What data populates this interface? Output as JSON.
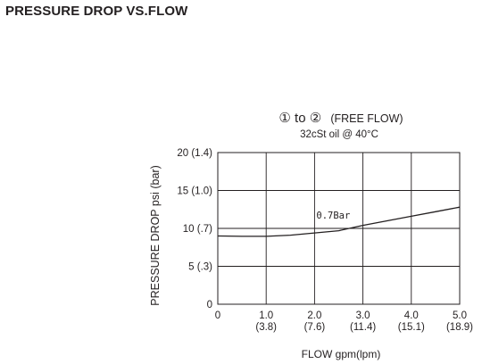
{
  "page_title": "PRESSURE DROP VS.FLOW",
  "chart_data": {
    "type": "line",
    "title_prefix": "① to ②",
    "title_suffix": "(FREE FLOW)",
    "subtitle": "32cSt oil @ 40°C",
    "xlabel": "FLOW gpm(lpm)",
    "ylabel": "PRESSURE DROP psi (bar)",
    "xlim": [
      0,
      5
    ],
    "ylim": [
      0,
      20
    ],
    "grid": true,
    "x_ticks": [
      {
        "value": 0,
        "label": "0",
        "sublabel": ""
      },
      {
        "value": 1,
        "label": "1.0",
        "sublabel": "(3.8)"
      },
      {
        "value": 2,
        "label": "2.0",
        "sublabel": "(7.6)"
      },
      {
        "value": 3,
        "label": "3.0",
        "sublabel": "(11.4)"
      },
      {
        "value": 4,
        "label": "4.0",
        "sublabel": "(15.1)"
      },
      {
        "value": 5,
        "label": "5.0",
        "sublabel": "(18.9)"
      }
    ],
    "y_ticks": [
      {
        "value": 0,
        "label": "0"
      },
      {
        "value": 5,
        "label": "5 (.3)"
      },
      {
        "value": 10,
        "label": "10 (.7)"
      },
      {
        "value": 15,
        "label": "15 (1.0)"
      },
      {
        "value": 20,
        "label": "20 (1.4)"
      }
    ],
    "series": [
      {
        "x": [
          0,
          0.5,
          1.0,
          1.5,
          2.0,
          2.5,
          3.0,
          3.5,
          4.0,
          4.5,
          5.0
        ],
        "y": [
          9.0,
          8.95,
          8.95,
          9.1,
          9.4,
          9.7,
          10.4,
          11.0,
          11.6,
          12.2,
          12.8
        ]
      }
    ],
    "annotations": [
      {
        "text": "0.7Bar",
        "x": 2.0,
        "y": 10.8
      }
    ]
  }
}
